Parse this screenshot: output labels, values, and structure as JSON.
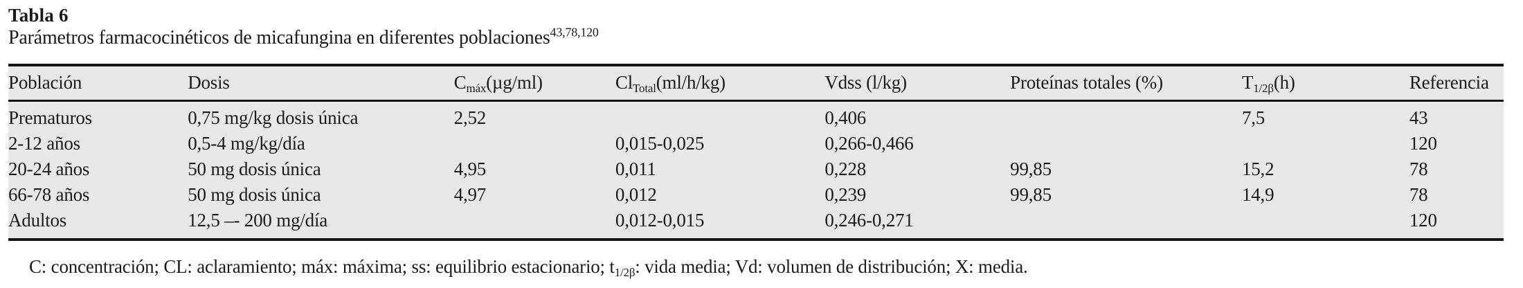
{
  "colors": {
    "page_background": "#ffffff",
    "table_band_background": "#e8e8e8",
    "rule_color": "#151515",
    "text_color": "#1b1b1b"
  },
  "title": "Tabla 6",
  "subtitle": {
    "text": "Parámetros farmacocinéticos de micafungina en diferentes poblaciones",
    "superscript": "43,78,120"
  },
  "table": {
    "columns": [
      {
        "key": "poblacion",
        "label": {
          "text": "Población"
        }
      },
      {
        "key": "dosis",
        "label": {
          "text": "Dosis"
        }
      },
      {
        "key": "cmax",
        "label": {
          "prefix": "C",
          "subscript": "máx",
          "suffix": "(µg/ml)"
        }
      },
      {
        "key": "cl_total",
        "label": {
          "prefix": "Cl",
          "subscript": "Total",
          "suffix": "(ml/h/kg)"
        }
      },
      {
        "key": "vdss",
        "label": {
          "text": "Vdss (l/kg)"
        }
      },
      {
        "key": "proteinas",
        "label": {
          "text": "Proteínas totales (%)"
        }
      },
      {
        "key": "t_half",
        "label": {
          "prefix": "T",
          "subscript": "1/2β",
          "suffix": "(h)"
        }
      },
      {
        "key": "referencia",
        "label": {
          "text": "Referencia"
        }
      }
    ],
    "rows": [
      [
        "Prematuros",
        "0,75 mg/kg dosis única",
        "2,52",
        "",
        "0,406",
        "",
        "7,5",
        "43"
      ],
      [
        "2-12 años",
        "0,5-4 mg/kg/día",
        "",
        "0,015-0,025",
        "0,266-0,466",
        "",
        "",
        "120"
      ],
      [
        "20-24 años",
        "50 mg dosis única",
        "4,95",
        "0,011",
        "0,228",
        "99,85",
        "15,2",
        "78"
      ],
      [
        "66-78 años",
        "50 mg dosis única",
        "4,97",
        "0,012",
        "0,239",
        "99,85",
        "14,9",
        "78"
      ],
      [
        "Adultos",
        "12,5 –- 200 mg/día",
        "",
        "0,012-0,015",
        "0,246-0,271",
        "",
        "",
        "120"
      ]
    ]
  },
  "footnote": {
    "part1": "C: concentración; CL: aclaramiento; máx: máxima; ss: equilibrio estacionario; t",
    "subscript": "1/2β",
    "part2": ": vida media; Vd: volumen de distribución; X: media."
  }
}
